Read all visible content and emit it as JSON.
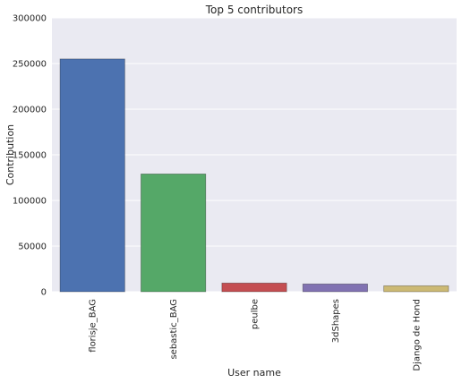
{
  "chart_data": {
    "type": "bar",
    "title": "Top 5 contributors",
    "xlabel": "User name",
    "ylabel": "Contribution",
    "categories": [
      "florisje_BAG",
      "sebastic_BAG",
      "peulbe",
      "3dShapes",
      "Django de Hond"
    ],
    "values": [
      255000,
      129000,
      9500,
      8500,
      6500
    ],
    "colors": [
      "#4c72b0",
      "#55a868",
      "#c44e52",
      "#8172b2",
      "#ccb974"
    ],
    "ylim": [
      0,
      300000
    ],
    "yticks": [
      "0",
      "50000",
      "100000",
      "150000",
      "200000",
      "250000",
      "300000"
    ],
    "grid": true
  }
}
